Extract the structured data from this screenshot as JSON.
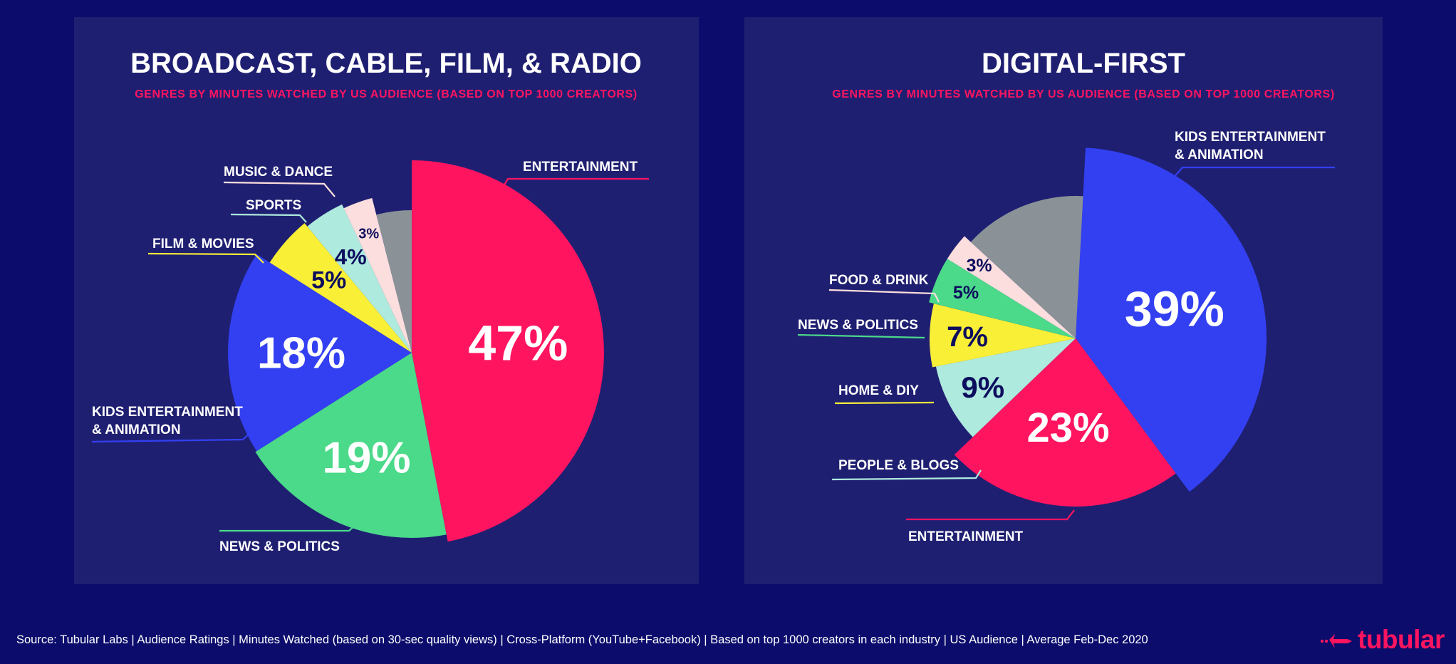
{
  "colors": {
    "background": "#0b0c6b",
    "panel": "#1f1f72",
    "accent": "#ff1460",
    "text": "#ffffff",
    "dark_text": "#0d0d5e"
  },
  "chart_data": [
    {
      "type": "pie",
      "title": "BROADCAST, CABLE, FILM, & RADIO",
      "subtitle": "GENRES BY MINUTES WATCHED BY US AUDIENCE (BASED ON TOP 1000 CREATORS)",
      "slices": [
        {
          "name": "ENTERTAINMENT",
          "label": "47%",
          "value": 47,
          "color": "#ff1460"
        },
        {
          "name": "NEWS & POLITICS",
          "label": "19%",
          "value": 19,
          "color": "#4bd98a"
        },
        {
          "name": "KIDS ENTERTAINMENT & ANIMATION",
          "label": "18%",
          "value": 18,
          "color": "#3340f2"
        },
        {
          "name": "FILM & MOVIES",
          "label": "5%",
          "value": 5,
          "color": "#f9ef37"
        },
        {
          "name": "SPORTS",
          "label": "4%",
          "value": 4,
          "color": "#aeeadd"
        },
        {
          "name": "MUSIC & DANCE",
          "label": "3%",
          "value": 3,
          "color": "#fbdedd"
        },
        {
          "name": "",
          "label": "",
          "value": 4,
          "color": "#8a9298"
        }
      ]
    },
    {
      "type": "pie",
      "title": "DIGITAL-FIRST",
      "subtitle": "GENRES BY MINUTES WATCHED BY US AUDIENCE (BASED ON TOP 1000 CREATORS)",
      "slices": [
        {
          "name": "KIDS ENTERTAINMENT & ANIMATION",
          "label": "39%",
          "value": 39,
          "color": "#3340f2"
        },
        {
          "name": "ENTERTAINMENT",
          "label": "23%",
          "value": 23,
          "color": "#ff1460"
        },
        {
          "name": "PEOPLE & BLOGS",
          "label": "9%",
          "value": 9,
          "color": "#aeeadd"
        },
        {
          "name": "HOME & DIY",
          "label": "7%",
          "value": 7,
          "color": "#f9ef37"
        },
        {
          "name": "NEWS & POLITICS",
          "label": "5%",
          "value": 5,
          "color": "#4bd98a"
        },
        {
          "name": "FOOD & DRINK",
          "label": "3%",
          "value": 3,
          "color": "#fbdedd"
        },
        {
          "name": "",
          "label": "",
          "value": 14,
          "color": "#8a9298"
        }
      ]
    }
  ],
  "footer": {
    "source": "Source: Tubular Labs | Audience Ratings | Minutes Watched (based on 30-sec quality views) | Cross-Platform (YouTube+Facebook) | Based on top 1000 creators in each industry | US Audience | Average Feb-Dec 2020"
  },
  "logo": {
    "text": "tubular",
    "icon": "tubular-arrow-icon"
  }
}
